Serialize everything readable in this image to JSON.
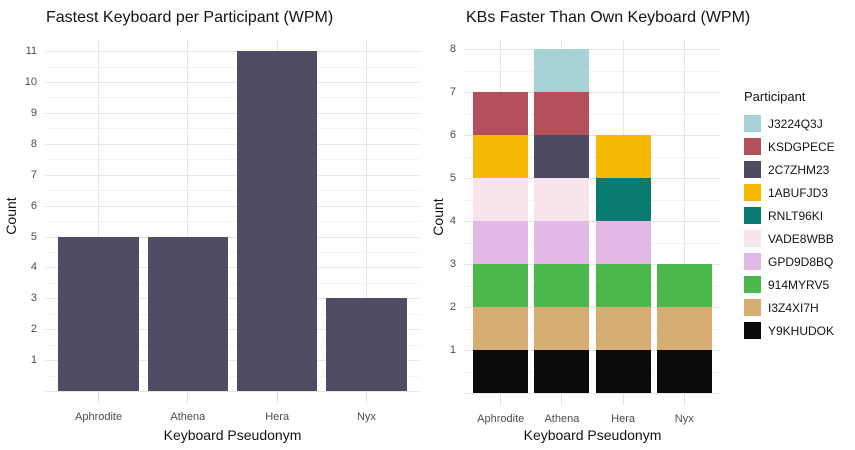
{
  "style": {
    "background": "#FFFFFF",
    "grid_major": "#E7E7E7",
    "grid_minor": "#F4F4F4",
    "axis_tick": "#E0E0E0",
    "tick_label_color": "#4D4D4D",
    "text_color": "#141414"
  },
  "chart_data": [
    {
      "type": "bar",
      "title": "Fastest Keyboard per Participant (WPM)",
      "xlabel": "Keyboard Pseudonym",
      "ylabel": "Count",
      "categories": [
        "Aphrodite",
        "Athena",
        "Hera",
        "Nyx"
      ],
      "values": [
        5,
        5,
        11,
        3
      ],
      "bar_color": "#504C63",
      "ylim": [
        0,
        11.36
      ],
      "yticks": [
        1,
        2,
        3,
        4,
        5,
        6,
        7,
        8,
        9,
        10,
        11
      ],
      "grid": true,
      "legend_position": "none"
    },
    {
      "type": "bar",
      "stacked": true,
      "title": "KBs Faster Than Own Keyboard (WPM)",
      "xlabel": "Keyboard Pseudonym",
      "ylabel": "Count",
      "categories": [
        "Aphrodite",
        "Athena",
        "Hera",
        "Nyx"
      ],
      "series": [
        {
          "name": "J3224Q3J",
          "color": "#A5D3D6",
          "values": [
            0,
            1,
            0,
            0
          ]
        },
        {
          "name": "KSDGPECE",
          "color": "#B4505A",
          "values": [
            1,
            1,
            0,
            0
          ]
        },
        {
          "name": "2C7ZHM23",
          "color": "#4E4A62",
          "values": [
            0,
            1,
            0,
            0
          ]
        },
        {
          "name": "1ABUFJD3",
          "color": "#F6B800",
          "values": [
            1,
            0,
            1,
            0
          ]
        },
        {
          "name": "RNLT96KI",
          "color": "#077B70",
          "values": [
            0,
            0,
            1,
            0
          ]
        },
        {
          "name": "VADE8WBB",
          "color": "#F8E4ED",
          "values": [
            1,
            1,
            0,
            0
          ]
        },
        {
          "name": "GPD9D8BQ",
          "color": "#E2B8E6",
          "values": [
            1,
            1,
            1,
            0
          ]
        },
        {
          "name": "914MYRV5",
          "color": "#4BB84C",
          "values": [
            1,
            1,
            1,
            1
          ]
        },
        {
          "name": "I3Z4XI7H",
          "color": "#D6AE72",
          "values": [
            1,
            1,
            1,
            1
          ]
        },
        {
          "name": "Y9KHUDOK",
          "color": "#0B0B0B",
          "values": [
            1,
            1,
            1,
            1
          ]
        }
      ],
      "stack_order": "reverse-of-legend",
      "totals": [
        7,
        8,
        6,
        3
      ],
      "ylim": [
        0,
        8.21
      ],
      "yticks": [
        1,
        2,
        3,
        4,
        5,
        6,
        7,
        8
      ],
      "grid": true,
      "legend": {
        "title": "Participant",
        "position": "right"
      }
    }
  ]
}
